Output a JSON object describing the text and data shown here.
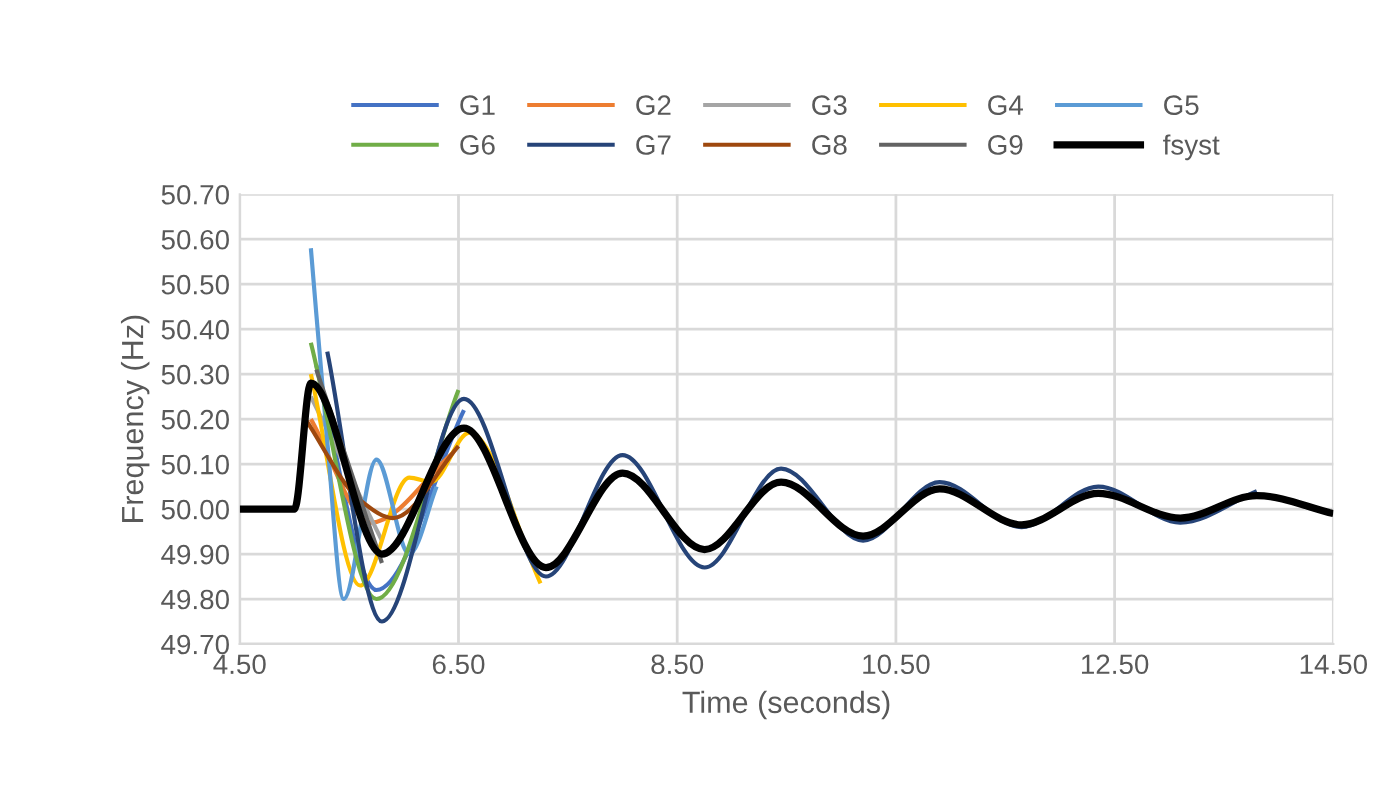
{
  "chart_data": {
    "type": "line",
    "xlabel": "Time (seconds)",
    "ylabel": "Frequency (Hz)",
    "legend": "top",
    "grid": true,
    "marker": "none",
    "line_style": "solid",
    "xlim": [
      4.5,
      14.5
    ],
    "ylim": [
      49.7,
      50.7
    ],
    "xticks": [
      {
        "value": 4.5,
        "label": "4.50"
      },
      {
        "value": 6.5,
        "label": "6.50"
      },
      {
        "value": 8.5,
        "label": "8.50"
      },
      {
        "value": 10.5,
        "label": "10.50"
      },
      {
        "value": 12.5,
        "label": "12.50"
      },
      {
        "value": 14.5,
        "label": "14.50"
      }
    ],
    "yticks": [
      {
        "value": 49.7,
        "label": "49.70"
      },
      {
        "value": 49.8,
        "label": "49.80"
      },
      {
        "value": 49.9,
        "label": "49.90"
      },
      {
        "value": 50.0,
        "label": "50.00"
      },
      {
        "value": 50.1,
        "label": "50.10"
      },
      {
        "value": 50.2,
        "label": "50.20"
      },
      {
        "value": 50.3,
        "label": "50.30"
      },
      {
        "value": 50.4,
        "label": "50.40"
      },
      {
        "value": 50.5,
        "label": "50.50"
      },
      {
        "value": 50.6,
        "label": "50.60"
      },
      {
        "value": 50.7,
        "label": "50.70"
      }
    ],
    "series": [
      {
        "name": "G1",
        "color": "#4472c4",
        "x": [
          5.2,
          5.75,
          6.55
        ],
        "values": [
          50.32,
          49.82,
          50.22
        ]
      },
      {
        "name": "G2",
        "color": "#ed7d31",
        "x": [
          5.15,
          5.7,
          6.45
        ],
        "values": [
          50.2,
          49.97,
          50.125
        ]
      },
      {
        "name": "G3",
        "color": "#a5a5a5",
        "x": [
          5.15,
          5.8
        ],
        "values": [
          50.25,
          49.93
        ]
      },
      {
        "name": "G4",
        "color": "#ffc000",
        "x": [
          5.15,
          5.6,
          6.05,
          6.25,
          6.6,
          7.25
        ],
        "values": [
          50.3,
          49.83,
          50.07,
          50.06,
          50.17,
          49.835
        ]
      },
      {
        "name": "G5",
        "color": "#5b9bd5",
        "x": [
          5.15,
          5.3,
          5.45,
          5.75,
          6.05,
          6.3
        ],
        "values": [
          50.58,
          50.15,
          49.8,
          50.11,
          49.9,
          50.05
        ]
      },
      {
        "name": "G6",
        "color": "#70ad47",
        "x": [
          5.15,
          5.75,
          6.5
        ],
        "values": [
          50.37,
          49.8,
          50.265
        ]
      },
      {
        "name": "G7",
        "color": "#264478",
        "x": [
          5.3,
          5.8,
          6.55,
          7.3,
          8.0,
          8.75,
          9.45,
          10.2,
          10.9,
          11.65,
          12.35,
          13.1,
          13.8
        ],
        "values": [
          50.35,
          49.75,
          50.245,
          49.85,
          50.12,
          49.87,
          50.09,
          49.93,
          50.06,
          49.96,
          50.05,
          49.97,
          50.04
        ]
      },
      {
        "name": "G8",
        "color": "#9e480e",
        "x": [
          5.1,
          5.6,
          5.9,
          6.5
        ],
        "values": [
          50.2,
          50.02,
          49.98,
          50.14
        ]
      },
      {
        "name": "G9",
        "color": "#636363",
        "x": [
          5.2,
          5.8
        ],
        "values": [
          50.31,
          49.88
        ]
      },
      {
        "name": "fsyst",
        "color": "#000000",
        "x": [
          4.5,
          5.0,
          5.15,
          5.8,
          6.55,
          7.3,
          8.0,
          8.75,
          9.45,
          10.2,
          10.9,
          11.65,
          12.35,
          13.1,
          13.8,
          14.5
        ],
        "values": [
          50.0,
          50.0,
          50.28,
          49.9,
          50.18,
          49.87,
          50.08,
          49.91,
          50.06,
          49.94,
          50.045,
          49.965,
          50.035,
          49.98,
          50.03,
          49.99
        ]
      }
    ]
  }
}
